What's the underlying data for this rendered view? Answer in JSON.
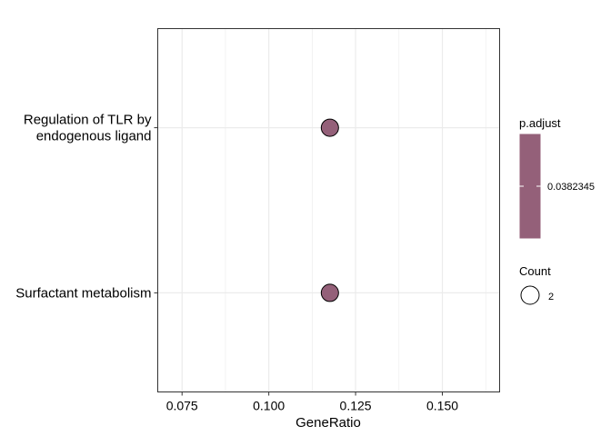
{
  "chart_data": {
    "type": "scatter",
    "title": "",
    "xlabel": "GeneRatio",
    "ylabel": "",
    "xlim": [
      0.068,
      0.1665
    ],
    "x_ticks": [
      0.075,
      0.1,
      0.125,
      0.15
    ],
    "x_tick_labels": [
      "0.075",
      "0.100",
      "0.125",
      "0.150"
    ],
    "categories": [
      [
        "Regulation of TLR by",
        "endogenous ligand"
      ],
      [
        "Surfactant metabolism"
      ]
    ],
    "points": [
      {
        "category_index": 0,
        "x": 0.1176,
        "count": 2,
        "p_adjust": 0.0382345
      },
      {
        "category_index": 1,
        "x": 0.1176,
        "count": 2,
        "p_adjust": 0.0382345
      }
    ],
    "grid": true,
    "legend_position": "right",
    "color_legend": {
      "title": "p.adjust",
      "label": "0.0382345",
      "color": "#946079"
    },
    "size_legend": {
      "title": "Count",
      "label": "2"
    },
    "colors": {
      "point_fill": "#946079",
      "point_stroke": "#000000",
      "grid": "#ebebeb",
      "panel_border": "#333333",
      "axis_text": "#000000"
    }
  }
}
